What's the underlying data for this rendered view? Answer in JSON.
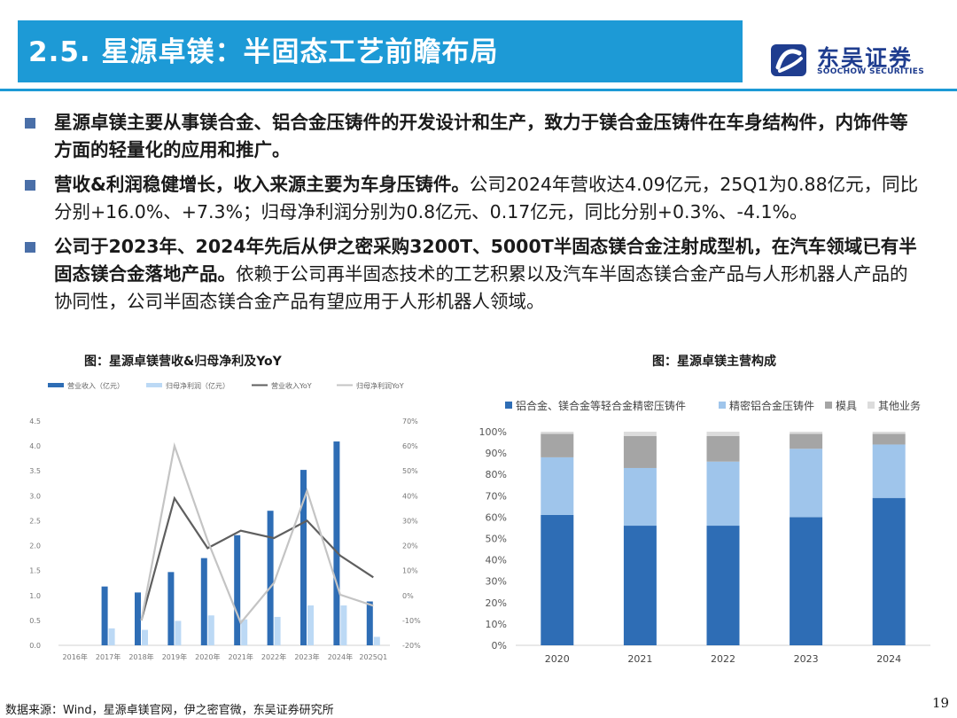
{
  "header": {
    "title": "2.5. 星源卓镁：半固态工艺前瞻布局"
  },
  "brand": {
    "name_cn": "东吴证券",
    "name_en": "SOOCHOW SECURITIES",
    "color": "#1f3d8f"
  },
  "bullets": [
    {
      "bold": "星源卓镁主要从事镁合金、铝合金压铸件的开发设计和生产，致力于镁合金压铸件在车身结构件，内饰件等方面的轻量化的应用和推广。",
      "normal": ""
    },
    {
      "bold": "营收&利润稳健增长，收入来源主要为车身压铸件。",
      "normal": "公司2024年营收达4.09亿元，25Q1为0.88亿元，同比分别+16.0%、+7.3%；归母净利润分别为0.8亿元、0.17亿元，同比分别+0.3%、-4.1%。"
    },
    {
      "bold": "公司于2023年、2024年先后从伊之密采购3200T、5000T半固态镁合金注射成型机，在汽车领域已有半固态镁合金落地产品。",
      "normal": "依赖于公司再半固态技术的工艺积累以及汽车半固态镁合金产品与人形机器人产品的协同性，公司半固态镁合金产品有望应用于人形机器人领域。"
    }
  ],
  "chart_left_title": "图：星源卓镁营收&归母净利及YoY",
  "chart_right_title": "图：星源卓镁主营构成",
  "chart_data": [
    {
      "type": "bar",
      "title": "图：星源卓镁营收&归母净利及YoY",
      "categories": [
        "2016年",
        "2017年",
        "2018年",
        "2019年",
        "2020年",
        "2021年",
        "2022年",
        "2023年",
        "2024年",
        "2025Q1"
      ],
      "series": [
        {
          "name": "营业收入（亿元）",
          "type": "bar",
          "axis": "left",
          "color": "#2e6db5",
          "values": [
            null,
            1.18,
            1.06,
            1.47,
            1.75,
            2.21,
            2.7,
            3.52,
            4.09,
            0.88
          ]
        },
        {
          "name": "归母净利润（亿元）",
          "type": "bar",
          "axis": "left",
          "color": "#bcd9f5",
          "values": [
            null,
            0.34,
            0.31,
            0.49,
            0.6,
            0.52,
            0.57,
            0.8,
            0.8,
            0.17
          ]
        },
        {
          "name": "营业收入YoY",
          "type": "line",
          "axis": "right",
          "color": "#5f5f5f",
          "values": [
            null,
            null,
            -10,
            39,
            19,
            26,
            23,
            30,
            16,
            7.3
          ]
        },
        {
          "name": "归母净利润YoY",
          "type": "line",
          "axis": "right",
          "color": "#c4c4c4",
          "values": [
            null,
            null,
            -10,
            60,
            22,
            -11,
            5,
            42,
            0.3,
            -4.1
          ]
        }
      ],
      "left_axis": {
        "min": 0,
        "max": 4.5,
        "ticks": [
          "0.0",
          "0.5",
          "1.0",
          "1.5",
          "2.0",
          "2.5",
          "3.0",
          "3.5",
          "4.0",
          "4.5"
        ]
      },
      "right_axis": {
        "min": -20,
        "max": 70,
        "ticks": [
          "-20%",
          "-10%",
          "0%",
          "10%",
          "20%",
          "30%",
          "40%",
          "50%",
          "60%",
          "70%"
        ]
      },
      "legend_position": "top"
    },
    {
      "type": "bar",
      "stacked": true,
      "title": "图：星源卓镁主营构成",
      "categories": [
        "2020",
        "2021",
        "2022",
        "2023",
        "2024"
      ],
      "series": [
        {
          "name": "铝合金、镁合金等轻合金精密压铸件",
          "color": "#2e6db5",
          "values": [
            61,
            56,
            56,
            60,
            69
          ]
        },
        {
          "name": "精密铝合金压铸件",
          "color": "#9fc5eb",
          "values": [
            27,
            27,
            30,
            32,
            25
          ]
        },
        {
          "name": "模具",
          "color": "#a5a5a5",
          "values": [
            11,
            15,
            12,
            7,
            5
          ]
        },
        {
          "name": "其他业务",
          "color": "#dcdcdc",
          "values": [
            1,
            2,
            2,
            1,
            1
          ]
        }
      ],
      "y_axis": {
        "min": 0,
        "max": 100,
        "ticks": [
          "0%",
          "10%",
          "20%",
          "30%",
          "40%",
          "50%",
          "60%",
          "70%",
          "80%",
          "90%",
          "100%"
        ]
      },
      "legend_position": "top"
    }
  ],
  "footer": {
    "source": "数据来源：Wind，星源卓镁官网，伊之密官微，东吴证券研究所",
    "page": "19"
  },
  "colors": {
    "header": "#1d9ad6",
    "bullet": "#4a6fa8"
  }
}
